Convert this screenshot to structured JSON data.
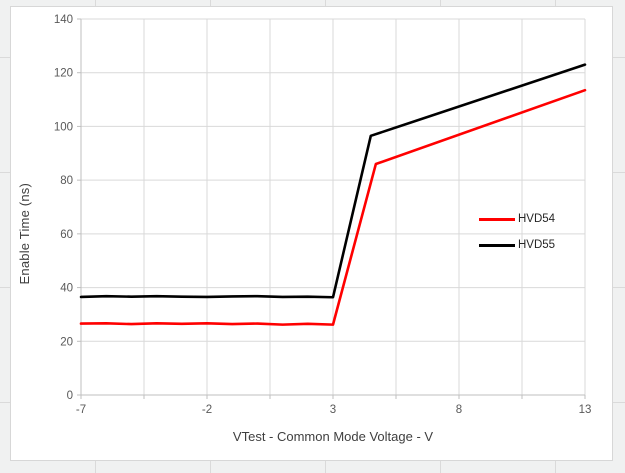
{
  "chart_data": {
    "type": "line",
    "title": "",
    "xlabel": "VTest - Common Mode Voltage - V",
    "ylabel": "Enable Time (ns)",
    "xlim": [
      -7,
      13
    ],
    "ylim": [
      0,
      140
    ],
    "x_major_ticks": [
      -7,
      -2,
      3,
      8,
      13
    ],
    "x_gridlines": [
      -7,
      -4.5,
      -2,
      0.5,
      3,
      5.5,
      8,
      10.5,
      13
    ],
    "y_ticks": [
      0,
      20,
      40,
      60,
      80,
      100,
      120,
      140
    ],
    "grid": true,
    "legend_position": "inside-right",
    "grid_color": "#d9d9d9",
    "axis_color": "#bfbfbf",
    "tick_label_color": "#595959",
    "series": [
      {
        "name": "HVD54",
        "color": "#ff0000",
        "points": [
          [
            -7,
            26.6
          ],
          [
            -6,
            26.7
          ],
          [
            -5,
            26.4
          ],
          [
            -4,
            26.7
          ],
          [
            -3,
            26.5
          ],
          [
            -2,
            26.7
          ],
          [
            -1,
            26.4
          ],
          [
            0,
            26.6
          ],
          [
            1,
            26.2
          ],
          [
            2,
            26.5
          ],
          [
            3,
            26.2
          ],
          [
            4.7,
            86
          ],
          [
            13,
            113.5
          ]
        ]
      },
      {
        "name": "HVD55",
        "color": "#000000",
        "points": [
          [
            -7,
            36.5
          ],
          [
            -6,
            36.8
          ],
          [
            -5,
            36.6
          ],
          [
            -4,
            36.8
          ],
          [
            -3,
            36.6
          ],
          [
            -2,
            36.5
          ],
          [
            -1,
            36.7
          ],
          [
            0,
            36.8
          ],
          [
            1,
            36.5
          ],
          [
            2,
            36.6
          ],
          [
            3,
            36.4
          ],
          [
            4.5,
            96.5
          ],
          [
            13,
            123
          ]
        ]
      }
    ]
  }
}
